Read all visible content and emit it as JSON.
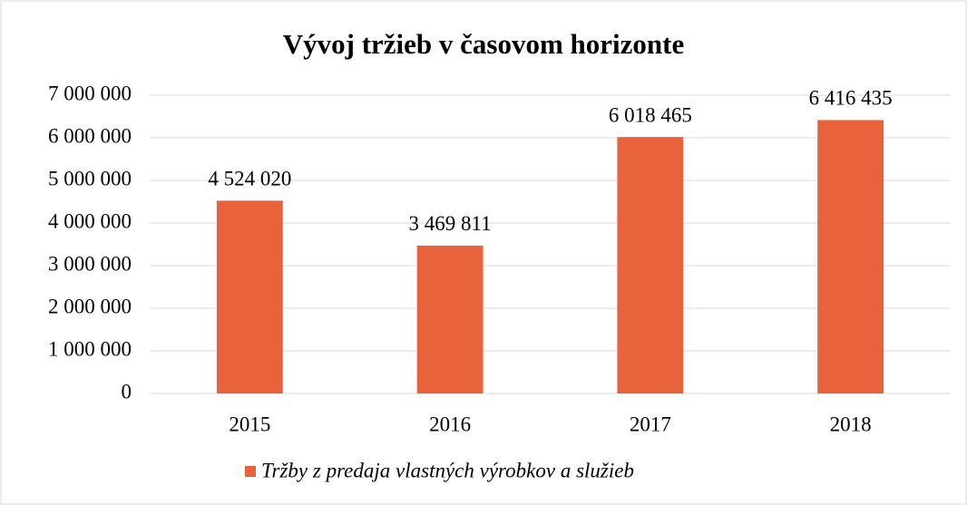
{
  "chart_data": {
    "type": "bar",
    "title": "Vývoj tržieb v časovom horizonte",
    "categories": [
      "2015",
      "2016",
      "2017",
      "2018"
    ],
    "series": [
      {
        "name": "Tržby z predaja vlastných výrobkov a služieb",
        "color": "#e8623c",
        "values": [
          4524020,
          3469811,
          6018465,
          6416435
        ],
        "value_labels": [
          "4 524 020",
          "3 469 811",
          "6 018 465",
          "6 416 435"
        ]
      }
    ],
    "ylim": [
      0,
      7000000
    ],
    "yticks": [
      {
        "value": 0,
        "label": "0"
      },
      {
        "value": 1000000,
        "label": "1 000 000"
      },
      {
        "value": 2000000,
        "label": "2 000 000"
      },
      {
        "value": 3000000,
        "label": "3 000 000"
      },
      {
        "value": 4000000,
        "label": "4 000 000"
      },
      {
        "value": 5000000,
        "label": "5 000 000"
      },
      {
        "value": 6000000,
        "label": "6 000 000"
      },
      {
        "value": 7000000,
        "label": "7 000 000"
      }
    ],
    "grid": true,
    "legend": "bottom"
  }
}
